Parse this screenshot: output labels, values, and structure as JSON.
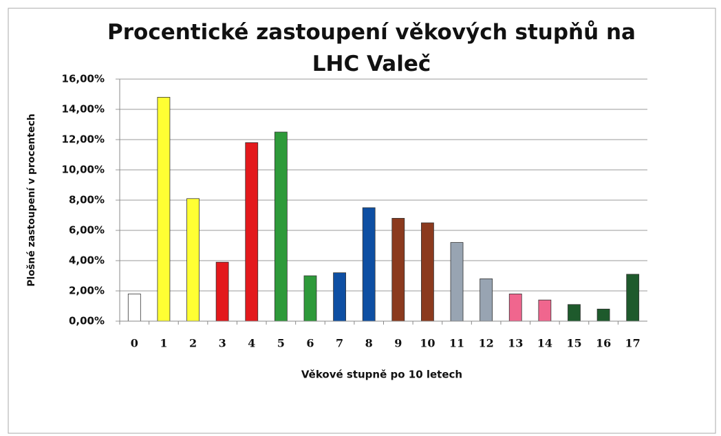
{
  "chart_data": {
    "type": "bar",
    "title": "Procentické zastoupení věkových stupňů na LHC Valeč",
    "x_label": "Věkové stupně po 10 letech",
    "y_label": "Plošné zastoupení v procentech",
    "categories": [
      "0",
      "1",
      "2",
      "3",
      "4",
      "5",
      "6",
      "7",
      "8",
      "9",
      "10",
      "11",
      "12",
      "13",
      "14",
      "15",
      "16",
      "17"
    ],
    "values": [
      1.8,
      14.8,
      8.1,
      3.9,
      11.8,
      12.5,
      3.0,
      3.2,
      7.5,
      6.8,
      6.5,
      5.2,
      2.8,
      1.8,
      1.4,
      1.1,
      0.8,
      3.1
    ],
    "colors": [
      "#ffffff",
      "#ffff33",
      "#ffff33",
      "#e3191c",
      "#e3191c",
      "#2e9a3a",
      "#2e9a3a",
      "#0e4fa3",
      "#0e4fa3",
      "#8b3a1e",
      "#8b3a1e",
      "#98a4b2",
      "#98a4b2",
      "#f0668e",
      "#f0668e",
      "#1e5a2c",
      "#1e5a2c",
      "#1e5a2c"
    ],
    "ylim": [
      0,
      16
    ],
    "yticks": [
      {
        "value": 0,
        "label": "0,00%"
      },
      {
        "value": 2,
        "label": "2,00%"
      },
      {
        "value": 4,
        "label": "4,00%"
      },
      {
        "value": 6,
        "label": "6,00%"
      },
      {
        "value": 8,
        "label": "8,00%"
      },
      {
        "value": 10,
        "label": "10,00%"
      },
      {
        "value": 12,
        "label": "12,00%"
      },
      {
        "value": 14,
        "label": "14,00%"
      },
      {
        "value": 16,
        "label": "16,00%"
      }
    ],
    "grid": true
  }
}
